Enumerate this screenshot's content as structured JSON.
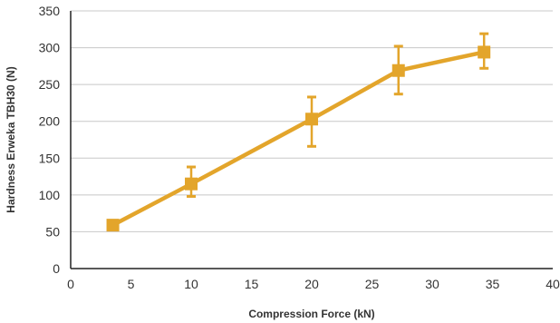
{
  "chart_data": {
    "type": "line",
    "title": "",
    "xlabel": "Compression Force (kN)",
    "ylabel": "Hardness Erweka TBH30 (N)",
    "xlim": [
      0,
      40
    ],
    "ylim": [
      0,
      350
    ],
    "x_ticks": [
      0,
      5,
      10,
      15,
      20,
      25,
      30,
      35,
      40
    ],
    "y_ticks": [
      0,
      50,
      100,
      150,
      200,
      250,
      300,
      350
    ],
    "grid": "horizontal",
    "legend": "none",
    "color": "#E3A52B",
    "series": [
      {
        "x": [
          3.5,
          10,
          20,
          27.2,
          34.3
        ],
        "y": [
          59,
          115,
          203,
          269,
          294
        ],
        "error_low": [
          null,
          98,
          166,
          237,
          272
        ],
        "error_high": [
          null,
          138,
          233,
          302,
          319
        ]
      }
    ]
  }
}
